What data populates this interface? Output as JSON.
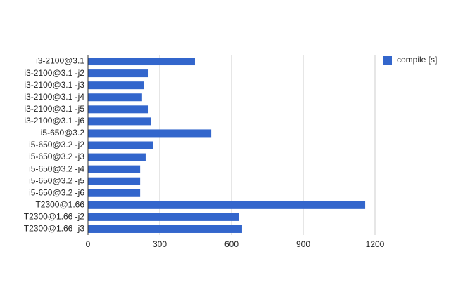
{
  "chart_data": {
    "type": "bar",
    "orientation": "horizontal",
    "categories": [
      "i3-2100@3.1",
      "i3-2100@3.1 -j2",
      "i3-2100@3.1 -j3",
      "i3-2100@3.1 -j4",
      "i3-2100@3.1 -j5",
      "i3-2100@3.1 -j6",
      "i5-650@3.2",
      "i5-650@3.2 -j2",
      "i5-650@3.2 -j3",
      "i5-650@3.2 -j4",
      "i5-650@3.2 -j5",
      "i5-650@3.2 -j6",
      "T2300@1.66",
      "T2300@1.66 -j2",
      "T2300@1.66 -j3"
    ],
    "series": [
      {
        "name": "compile [s]",
        "color": "#3366cc",
        "values": [
          447,
          253,
          235,
          226,
          253,
          262,
          515,
          271,
          241,
          218,
          218,
          218,
          1159,
          632,
          644
        ]
      }
    ],
    "xlim": [
      0,
      1200
    ],
    "xticks": [
      0,
      300,
      600,
      900,
      1200
    ],
    "grid": true,
    "legend": "right"
  }
}
